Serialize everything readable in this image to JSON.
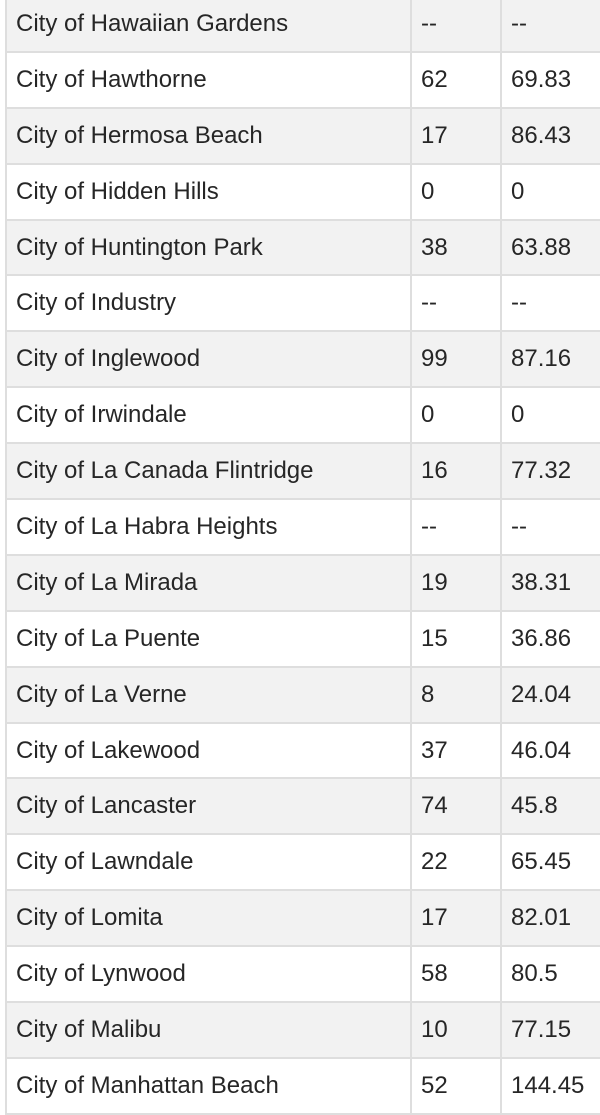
{
  "table": {
    "rows": [
      {
        "name": "City of Hawaiian Gardens",
        "count": "--",
        "rate": "--"
      },
      {
        "name": "City of Hawthorne",
        "count": "62",
        "rate": "69.83"
      },
      {
        "name": "City of Hermosa Beach",
        "count": "17",
        "rate": "86.43"
      },
      {
        "name": "City of Hidden Hills",
        "count": "0",
        "rate": "0"
      },
      {
        "name": "City of Huntington Park",
        "count": "38",
        "rate": "63.88"
      },
      {
        "name": "City of Industry",
        "count": "--",
        "rate": "--"
      },
      {
        "name": "City of Inglewood",
        "count": "99",
        "rate": "87.16"
      },
      {
        "name": "City of Irwindale",
        "count": "0",
        "rate": "0"
      },
      {
        "name": "City of La Canada Flintridge",
        "count": "16",
        "rate": "77.32"
      },
      {
        "name": "City of La Habra Heights",
        "count": "--",
        "rate": "--"
      },
      {
        "name": "City of La Mirada",
        "count": "19",
        "rate": "38.31"
      },
      {
        "name": "City of La Puente",
        "count": "15",
        "rate": "36.86"
      },
      {
        "name": "City of La Verne",
        "count": "8",
        "rate": "24.04"
      },
      {
        "name": "City of Lakewood",
        "count": "37",
        "rate": "46.04"
      },
      {
        "name": "City of Lancaster",
        "count": "74",
        "rate": "45.8"
      },
      {
        "name": "City of Lawndale",
        "count": "22",
        "rate": "65.45"
      },
      {
        "name": "City of Lomita",
        "count": "17",
        "rate": "82.01"
      },
      {
        "name": "City of Lynwood",
        "count": "58",
        "rate": "80.5"
      },
      {
        "name": "City of Malibu",
        "count": "10",
        "rate": "77.15"
      },
      {
        "name": "City of Manhattan Beach",
        "count": "52",
        "rate": "144.45"
      }
    ]
  }
}
